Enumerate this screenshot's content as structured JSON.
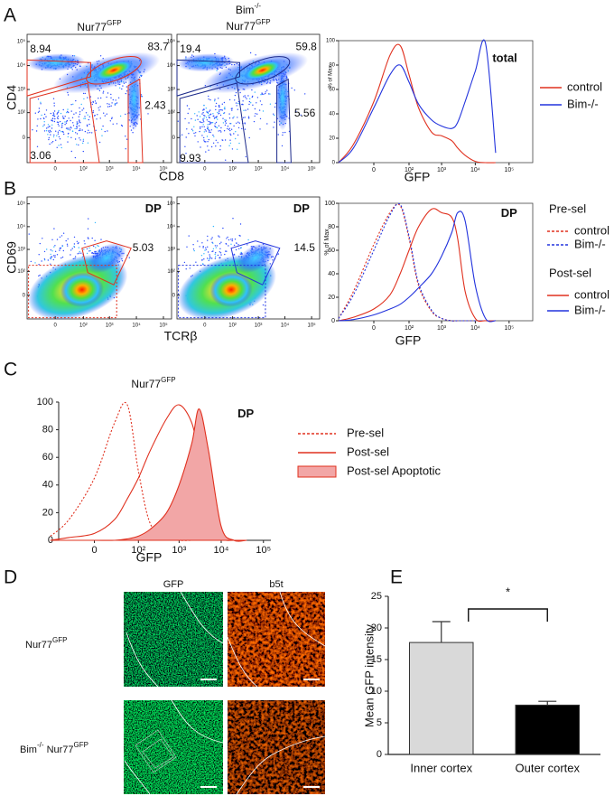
{
  "panel_labels": [
    "A",
    "B",
    "C",
    "D",
    "E"
  ],
  "chart_data": [
    {
      "type": "density",
      "title": [
        [
          {
            "text": "Nur77",
            "sup": "GFP"
          }
        ]
      ],
      "xlabel": "CD8",
      "ylabel": "CD4",
      "xlim": [
        -100,
        200000
      ],
      "ylim": [
        -100,
        200000
      ],
      "xticks": [
        0,
        {
          "value": 100,
          "label": "10²"
        },
        {
          "value": 1000,
          "label": "10³"
        },
        {
          "value": 10000,
          "label": "10⁴"
        },
        {
          "value": 100000,
          "label": "10⁵"
        }
      ],
      "yticks": [
        0,
        {
          "value": 100,
          "label": "10²"
        },
        {
          "value": 1000,
          "label": "10³"
        },
        {
          "value": 10000,
          "label": "10⁴"
        },
        {
          "value": 100000,
          "label": "10⁵"
        }
      ],
      "gate_labels": [
        8.94,
        83.7,
        2.43,
        3.06
      ]
    },
    {
      "type": "density",
      "title": [
        [
          {
            "text": "Bim",
            "sup": "-/-"
          }
        ],
        [
          {
            "text": "Nur77",
            "sup": "GFP"
          }
        ]
      ],
      "xlim": [
        -100,
        200000
      ],
      "ylim": [
        -100,
        200000
      ],
      "xticks": [
        0,
        {
          "value": 100,
          "label": "10²"
        },
        {
          "value": 1000,
          "label": "10³"
        },
        {
          "value": 10000,
          "label": "10⁴"
        },
        {
          "value": 100000,
          "label": "10⁵"
        }
      ],
      "yticks": [
        0,
        {
          "value": 100,
          "label": "10²"
        },
        {
          "value": 1000,
          "label": "10³"
        },
        {
          "value": 10000,
          "label": "10⁴"
        },
        {
          "value": 100000,
          "label": "10⁵"
        }
      ],
      "gate_labels": [
        19.4,
        59.8,
        5.56,
        9.93
      ]
    },
    {
      "type": "histogram",
      "annotation": "total",
      "xlabel": "GFP",
      "ylabel": "% of Max",
      "xlim": [
        -100,
        500000
      ],
      "ylim": [
        0,
        100
      ],
      "xticks": [
        0,
        {
          "value": 100,
          "label": "10²"
        },
        {
          "value": 1000,
          "label": "10³"
        },
        {
          "value": 10000,
          "label": "10⁴"
        },
        {
          "value": 100000,
          "label": "10⁵"
        }
      ],
      "yticks": [
        0,
        20,
        40,
        60,
        80,
        100
      ],
      "x": [
        -100,
        -30,
        0,
        20,
        50,
        100,
        200,
        500,
        1000,
        2000,
        3000,
        5000,
        10000,
        20000,
        40000
      ],
      "series": [
        {
          "name": "control",
          "color": "#e0301e",
          "values": [
            0,
            15,
            50,
            88,
            96,
            72,
            45,
            25,
            22,
            18,
            12,
            6,
            1,
            0,
            0
          ]
        },
        {
          "name": "Bim-/-",
          "color": "#2233dd",
          "values": [
            0,
            12,
            45,
            72,
            80,
            66,
            48,
            35,
            30,
            28,
            33,
            50,
            75,
            98,
            8
          ]
        }
      ]
    },
    {
      "type": "density",
      "annotation": "DP",
      "xlabel": "TCRβ",
      "ylabel": "CD69",
      "xlim": [
        -100,
        200000
      ],
      "ylim": [
        -100,
        200000
      ],
      "xticks": [
        0,
        {
          "value": 100,
          "label": "10²"
        },
        {
          "value": 1000,
          "label": "10³"
        },
        {
          "value": 10000,
          "label": "10⁴"
        },
        {
          "value": 100000,
          "label": "10⁵"
        }
      ],
      "yticks": [
        0,
        {
          "value": 100,
          "label": "10²"
        },
        {
          "value": 1000,
          "label": "10³"
        },
        {
          "value": 10000,
          "label": "10⁴"
        },
        {
          "value": 100000,
          "label": "10⁵"
        }
      ],
      "gate_labels": [
        5.03
      ]
    },
    {
      "type": "density",
      "annotation": "DP",
      "xlim": [
        -100,
        200000
      ],
      "ylim": [
        -100,
        200000
      ],
      "xticks": [
        0,
        {
          "value": 100,
          "label": "10²"
        },
        {
          "value": 1000,
          "label": "10³"
        },
        {
          "value": 10000,
          "label": "10⁴"
        },
        {
          "value": 100000,
          "label": "10⁵"
        }
      ],
      "yticks": [
        0,
        {
          "value": 100,
          "label": "10²"
        },
        {
          "value": 1000,
          "label": "10³"
        },
        {
          "value": 10000,
          "label": "10⁴"
        },
        {
          "value": 100000,
          "label": "10⁵"
        }
      ],
      "gate_labels": [
        14.5
      ]
    },
    {
      "type": "histogram",
      "annotation": "DP",
      "xlabel": "GFP",
      "ylabel": "% of Max",
      "xlim": [
        -100,
        500000
      ],
      "ylim": [
        0,
        100
      ],
      "xticks": [
        0,
        {
          "value": 100,
          "label": "10²"
        },
        {
          "value": 1000,
          "label": "10³"
        },
        {
          "value": 10000,
          "label": "10⁴"
        },
        {
          "value": 100000,
          "label": "10⁵"
        }
      ],
      "yticks": [
        0,
        20,
        40,
        60,
        80,
        100
      ],
      "legend_groups": [
        "Pre-sel",
        "Post-sel"
      ],
      "x": [
        -100,
        -30,
        0,
        20,
        50,
        100,
        200,
        500,
        1000,
        2000,
        3000,
        5000,
        10000,
        20000,
        40000
      ],
      "series": [
        {
          "name": "control",
          "group": 0,
          "dashed": true,
          "color": "#e0301e",
          "values": [
            2,
            25,
            65,
            92,
            98,
            70,
            30,
            8,
            2,
            0,
            0,
            0,
            0,
            0,
            0
          ]
        },
        {
          "name": "Bim-/-",
          "group": 0,
          "dashed": true,
          "color": "#2233dd",
          "values": [
            2,
            22,
            60,
            90,
            99,
            72,
            32,
            9,
            2,
            0,
            0,
            0,
            0,
            0,
            0
          ]
        },
        {
          "name": "control",
          "group": 1,
          "dashed": false,
          "color": "#e0301e",
          "values": [
            0,
            3,
            10,
            22,
            40,
            60,
            80,
            95,
            92,
            88,
            70,
            25,
            2,
            0,
            0
          ]
        },
        {
          "name": "Bim-/-",
          "group": 1,
          "dashed": false,
          "color": "#2233dd",
          "values": [
            0,
            1,
            5,
            10,
            14,
            20,
            28,
            40,
            55,
            75,
            92,
            85,
            30,
            2,
            0
          ]
        }
      ]
    },
    {
      "type": "histogram",
      "title": [
        [
          {
            "text": "Nur77",
            "sup": "GFP"
          }
        ]
      ],
      "annotation": "DP",
      "xlabel": "GFP",
      "xlim": [
        -60,
        150000
      ],
      "ylim": [
        0,
        100
      ],
      "xticks": [
        0,
        {
          "value": 100,
          "label": "10²"
        },
        {
          "value": 1000,
          "label": "10³"
        },
        {
          "value": 10000,
          "label": "10⁴"
        },
        {
          "value": 100000,
          "label": "10⁵"
        }
      ],
      "yticks": [
        0,
        20,
        40,
        60,
        80,
        100
      ],
      "x": [
        -100,
        -30,
        0,
        20,
        50,
        100,
        200,
        500,
        1000,
        2000,
        3000,
        5000,
        10000,
        20000,
        40000
      ],
      "series": [
        {
          "name": "Pre-sel",
          "dashed": true,
          "filled": false,
          "color": "#e0301e",
          "values": [
            3,
            15,
            45,
            85,
            98,
            50,
            12,
            2,
            0,
            0,
            0,
            0,
            0,
            0,
            0
          ]
        },
        {
          "name": "Post-sel",
          "dashed": false,
          "filled": false,
          "color": "#e0301e",
          "values": [
            0,
            2,
            5,
            15,
            30,
            45,
            65,
            88,
            98,
            85,
            60,
            20,
            2,
            0,
            0
          ]
        },
        {
          "name": "Post-sel Apoptotic",
          "dashed": false,
          "filled": true,
          "color": "#e0301e",
          "fill": "#f2a6a6",
          "values": [
            0,
            0,
            0,
            0,
            1,
            3,
            8,
            20,
            40,
            70,
            95,
            65,
            10,
            0,
            0
          ]
        }
      ]
    },
    {
      "type": "bar",
      "ylabel": "Mean GFP intensity",
      "annotation": "*",
      "categories": [
        "Inner cortex",
        "Outer cortex"
      ],
      "values": [
        17.7,
        7.8
      ],
      "errors": [
        3.3,
        0.6
      ],
      "colors": [
        "#d9d9d9",
        "#000000"
      ],
      "ylim": [
        0,
        25
      ],
      "yticks": [
        0,
        5,
        10,
        15,
        20,
        25
      ]
    }
  ],
  "micrographs": {
    "columns": [
      "GFP",
      "b5t"
    ],
    "rows": [
      [
        {
          "text": "Nur77",
          "sup": "GFP"
        }
      ],
      [
        {
          "text": "Bim",
          "sup": "-/-"
        },
        {
          "text": " Nur77",
          "sup": "GFP"
        }
      ]
    ]
  }
}
